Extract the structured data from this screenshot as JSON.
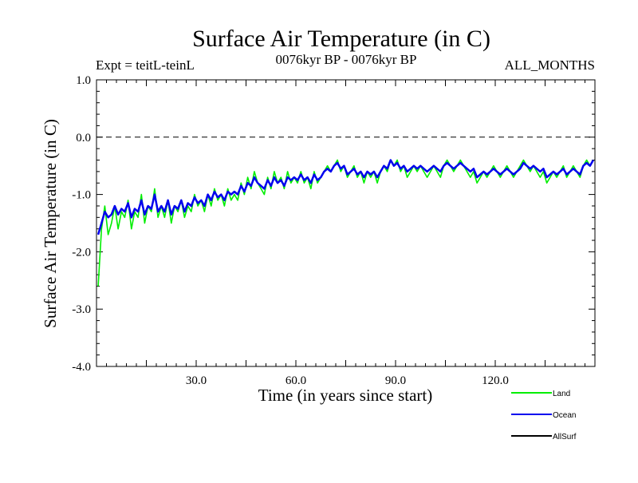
{
  "chart_data": {
    "type": "line",
    "title": "Surface Air Temperature (in C)",
    "subtitle_left": "Expt = teitL-teinL",
    "subtitle_center": "0076kyr BP - 0076kyr BP",
    "subtitle_right": "ALL_MONTHS",
    "xlabel": "Time (in years since start)",
    "ylabel": "Surface Air Temperature (in C)",
    "xlim": [
      0,
      150
    ],
    "ylim": [
      -4.0,
      1.0
    ],
    "x_ticks": [
      30,
      60,
      90,
      120
    ],
    "x_tick_labels": [
      "30.0",
      "60.0",
      "90.0",
      "120.0"
    ],
    "y_ticks": [
      1.0,
      0.0,
      -1.0,
      -2.0,
      -3.0,
      -4.0
    ],
    "y_tick_labels": [
      "1.0",
      "0.0",
      "-1.0",
      "-2.0",
      "-3.0",
      "-4.0"
    ],
    "reference_line": 0.0,
    "series": [
      {
        "name": "Land",
        "color": "#00ee00",
        "values": [
          -2.6,
          -1.6,
          -1.2,
          -1.7,
          -1.5,
          -1.2,
          -1.6,
          -1.3,
          -1.4,
          -1.1,
          -1.6,
          -1.3,
          -1.4,
          -1.0,
          -1.5,
          -1.2,
          -1.3,
          -0.9,
          -1.4,
          -1.2,
          -1.4,
          -1.1,
          -1.5,
          -1.2,
          -1.3,
          -1.1,
          -1.4,
          -1.2,
          -1.3,
          -1.0,
          -1.2,
          -1.1,
          -1.3,
          -1.0,
          -1.2,
          -0.9,
          -1.1,
          -1.0,
          -1.2,
          -0.9,
          -1.1,
          -1.0,
          -1.1,
          -0.8,
          -1.0,
          -0.7,
          -0.9,
          -0.6,
          -0.8,
          -0.9,
          -1.0,
          -0.7,
          -0.9,
          -0.6,
          -0.8,
          -0.7,
          -0.9,
          -0.6,
          -0.8,
          -0.7,
          -0.8,
          -0.6,
          -0.8,
          -0.7,
          -0.9,
          -0.6,
          -0.8,
          -0.7,
          -0.6,
          -0.5,
          -0.6,
          -0.5,
          -0.4,
          -0.6,
          -0.5,
          -0.7,
          -0.6,
          -0.5,
          -0.7,
          -0.6,
          -0.8,
          -0.6,
          -0.7,
          -0.6,
          -0.8,
          -0.6,
          -0.5,
          -0.6,
          -0.4,
          -0.5,
          -0.4,
          -0.6,
          -0.5,
          -0.7,
          -0.6,
          -0.5,
          -0.6,
          -0.5,
          -0.6,
          -0.7,
          -0.6,
          -0.5,
          -0.6,
          -0.7,
          -0.5,
          -0.4,
          -0.5,
          -0.6,
          -0.5,
          -0.4,
          -0.5,
          -0.6,
          -0.7,
          -0.6,
          -0.8,
          -0.7,
          -0.6,
          -0.7,
          -0.6,
          -0.5,
          -0.6,
          -0.7,
          -0.6,
          -0.5,
          -0.6,
          -0.7,
          -0.6,
          -0.5,
          -0.4,
          -0.5,
          -0.6,
          -0.5,
          -0.6,
          -0.7,
          -0.6,
          -0.8,
          -0.7,
          -0.6,
          -0.7,
          -0.6,
          -0.5,
          -0.7,
          -0.6,
          -0.5,
          -0.6,
          -0.7,
          -0.5,
          -0.4,
          -0.5,
          -0.4
        ]
      },
      {
        "name": "Ocean",
        "color": "#0000ee",
        "values": [
          -1.7,
          -1.5,
          -1.3,
          -1.4,
          -1.35,
          -1.2,
          -1.35,
          -1.25,
          -1.3,
          -1.15,
          -1.4,
          -1.25,
          -1.3,
          -1.1,
          -1.35,
          -1.2,
          -1.25,
          -1.0,
          -1.3,
          -1.2,
          -1.3,
          -1.1,
          -1.35,
          -1.2,
          -1.25,
          -1.1,
          -1.3,
          -1.15,
          -1.2,
          -1.05,
          -1.15,
          -1.1,
          -1.2,
          -1.0,
          -1.1,
          -0.95,
          -1.05,
          -1.0,
          -1.1,
          -0.95,
          -1.0,
          -0.95,
          -1.0,
          -0.85,
          -0.95,
          -0.8,
          -0.85,
          -0.7,
          -0.8,
          -0.85,
          -0.9,
          -0.75,
          -0.85,
          -0.7,
          -0.8,
          -0.75,
          -0.85,
          -0.7,
          -0.75,
          -0.7,
          -0.75,
          -0.65,
          -0.75,
          -0.7,
          -0.8,
          -0.65,
          -0.75,
          -0.7,
          -0.6,
          -0.55,
          -0.6,
          -0.5,
          -0.45,
          -0.55,
          -0.5,
          -0.65,
          -0.6,
          -0.55,
          -0.65,
          -0.6,
          -0.7,
          -0.6,
          -0.65,
          -0.6,
          -0.7,
          -0.6,
          -0.5,
          -0.55,
          -0.4,
          -0.5,
          -0.45,
          -0.55,
          -0.5,
          -0.6,
          -0.55,
          -0.5,
          -0.55,
          -0.5,
          -0.55,
          -0.6,
          -0.55,
          -0.5,
          -0.55,
          -0.6,
          -0.5,
          -0.45,
          -0.5,
          -0.55,
          -0.5,
          -0.45,
          -0.5,
          -0.55,
          -0.6,
          -0.55,
          -0.7,
          -0.65,
          -0.6,
          -0.65,
          -0.6,
          -0.55,
          -0.6,
          -0.65,
          -0.6,
          -0.55,
          -0.6,
          -0.65,
          -0.6,
          -0.55,
          -0.45,
          -0.5,
          -0.55,
          -0.5,
          -0.55,
          -0.6,
          -0.55,
          -0.7,
          -0.65,
          -0.6,
          -0.65,
          -0.6,
          -0.55,
          -0.65,
          -0.6,
          -0.55,
          -0.6,
          -0.65,
          -0.5,
          -0.45,
          -0.5,
          -0.4
        ]
      },
      {
        "name": "AllSurf",
        "color": "#000000",
        "values": []
      }
    ]
  }
}
